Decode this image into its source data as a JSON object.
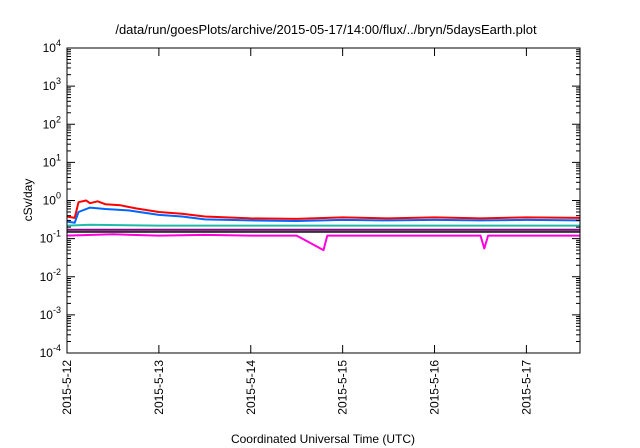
{
  "chart_data": {
    "type": "line",
    "title": "/data/run/goesPlots/archive/2015-05-17/14:00/flux/../bryn/5daysEarth.plot",
    "xlabel": "Coordinated Universal Time (UTC)",
    "ylabel": "cSv/day",
    "yscale": "log",
    "ylim": [
      0.0001,
      10000
    ],
    "xlim": [
      "2015-05-12 00:00",
      "2015-05-17 14:00"
    ],
    "grid": false,
    "legend": "none",
    "y_ticks": [
      {
        "value": 0.0001,
        "base": "10",
        "exp": "-4"
      },
      {
        "value": 0.001,
        "base": "10",
        "exp": "-3"
      },
      {
        "value": 0.01,
        "base": "10",
        "exp": "-2"
      },
      {
        "value": 0.1,
        "base": "10",
        "exp": "-1"
      },
      {
        "value": 1,
        "base": "10",
        "exp": "0"
      },
      {
        "value": 10,
        "base": "10",
        "exp": "1"
      },
      {
        "value": 100,
        "base": "10",
        "exp": "2"
      },
      {
        "value": 1000,
        "base": "10",
        "exp": "3"
      },
      {
        "value": 10000,
        "base": "10",
        "exp": "4"
      }
    ],
    "x_ticks": [
      "2015-5-12",
      "2015-5-13",
      "2015-5-14",
      "2015-5-15",
      "2015-5-16",
      "2015-5-17"
    ],
    "series": [
      {
        "color": "#ff0000",
        "points": [
          [
            "2015-05-12 00:00",
            0.38
          ],
          [
            "2015-05-12 02:00",
            0.35
          ],
          [
            "2015-05-12 03:00",
            0.9
          ],
          [
            "2015-05-12 05:00",
            1.0
          ],
          [
            "2015-05-12 06:00",
            0.85
          ],
          [
            "2015-05-12 08:00",
            0.95
          ],
          [
            "2015-05-12 10:00",
            0.8
          ],
          [
            "2015-05-12 14:00",
            0.75
          ],
          [
            "2015-05-12 18:00",
            0.62
          ],
          [
            "2015-05-13 00:00",
            0.5
          ],
          [
            "2015-05-13 06:00",
            0.45
          ],
          [
            "2015-05-13 12:00",
            0.38
          ],
          [
            "2015-05-14 00:00",
            0.34
          ],
          [
            "2015-05-14 12:00",
            0.33
          ],
          [
            "2015-05-15 00:00",
            0.36
          ],
          [
            "2015-05-15 12:00",
            0.34
          ],
          [
            "2015-05-16 00:00",
            0.36
          ],
          [
            "2015-05-16 12:00",
            0.34
          ],
          [
            "2015-05-17 00:00",
            0.36
          ],
          [
            "2015-05-17 14:00",
            0.35
          ]
        ]
      },
      {
        "color": "#0066ff",
        "points": [
          [
            "2015-05-12 00:00",
            0.28
          ],
          [
            "2015-05-12 02:00",
            0.26
          ],
          [
            "2015-05-12 03:00",
            0.5
          ],
          [
            "2015-05-12 06:00",
            0.65
          ],
          [
            "2015-05-12 10:00",
            0.6
          ],
          [
            "2015-05-12 16:00",
            0.55
          ],
          [
            "2015-05-13 00:00",
            0.42
          ],
          [
            "2015-05-13 06:00",
            0.38
          ],
          [
            "2015-05-13 12:00",
            0.32
          ],
          [
            "2015-05-14 00:00",
            0.3
          ],
          [
            "2015-05-14 12:00",
            0.29
          ],
          [
            "2015-05-15 00:00",
            0.31
          ],
          [
            "2015-05-15 12:00",
            0.3
          ],
          [
            "2015-05-16 00:00",
            0.31
          ],
          [
            "2015-05-16 12:00",
            0.3
          ],
          [
            "2015-05-17 00:00",
            0.31
          ],
          [
            "2015-05-17 14:00",
            0.3
          ]
        ]
      },
      {
        "color": "#22bbaa",
        "points": [
          [
            "2015-05-12 00:00",
            0.22
          ],
          [
            "2015-05-12 06:00",
            0.23
          ],
          [
            "2015-05-13 00:00",
            0.22
          ],
          [
            "2015-05-14 00:00",
            0.22
          ],
          [
            "2015-05-15 00:00",
            0.22
          ],
          [
            "2015-05-16 00:00",
            0.22
          ],
          [
            "2015-05-17 00:00",
            0.22
          ],
          [
            "2015-05-17 14:00",
            0.22
          ]
        ]
      },
      {
        "color": "#880088",
        "points": [
          [
            "2015-05-12 00:00",
            0.17
          ],
          [
            "2015-05-12 12:00",
            0.17
          ],
          [
            "2015-05-13 00:00",
            0.17
          ],
          [
            "2015-05-14 00:00",
            0.17
          ],
          [
            "2015-05-15 00:00",
            0.17
          ],
          [
            "2015-05-16 00:00",
            0.17
          ],
          [
            "2015-05-17 00:00",
            0.17
          ],
          [
            "2015-05-17 14:00",
            0.17
          ]
        ]
      },
      {
        "color": "#333333",
        "points": [
          [
            "2015-05-12 00:00",
            0.15
          ],
          [
            "2015-05-13 00:00",
            0.15
          ],
          [
            "2015-05-14 00:00",
            0.15
          ],
          [
            "2015-05-15 00:00",
            0.15
          ],
          [
            "2015-05-16 00:00",
            0.15
          ],
          [
            "2015-05-17 00:00",
            0.15
          ],
          [
            "2015-05-17 14:00",
            0.15
          ]
        ]
      },
      {
        "color": "#ff00dd",
        "points": [
          [
            "2015-05-12 00:00",
            0.12
          ],
          [
            "2015-05-12 12:00",
            0.13
          ],
          [
            "2015-05-13 00:00",
            0.12
          ],
          [
            "2015-05-13 12:00",
            0.125
          ],
          [
            "2015-05-14 00:00",
            0.12
          ],
          [
            "2015-05-14 12:00",
            0.12
          ],
          [
            "2015-05-14 19:00",
            0.05
          ],
          [
            "2015-05-14 20:00",
            0.12
          ],
          [
            "2015-05-15 00:00",
            0.12
          ],
          [
            "2015-05-15 12:00",
            0.12
          ],
          [
            "2015-05-16 00:00",
            0.12
          ],
          [
            "2015-05-16 12:00",
            0.12
          ],
          [
            "2015-05-16 13:00",
            0.055
          ],
          [
            "2015-05-16 14:00",
            0.12
          ],
          [
            "2015-05-17 00:00",
            0.12
          ],
          [
            "2015-05-17 14:00",
            0.12
          ]
        ]
      }
    ]
  }
}
